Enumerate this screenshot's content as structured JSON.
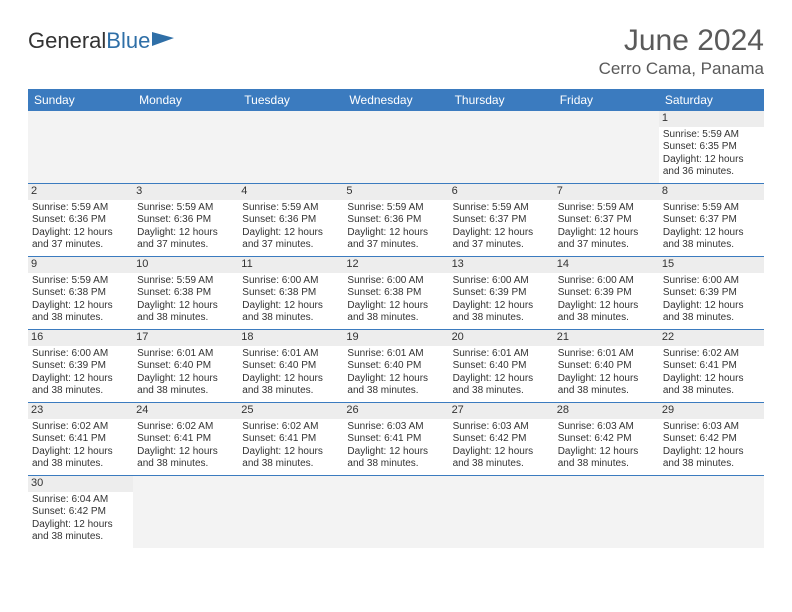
{
  "logo": {
    "text1": "General",
    "text2": "Blue"
  },
  "title": "June 2024",
  "location": "Cerro Cama, Panama",
  "colors": {
    "header_bg": "#3b7bbf",
    "header_fg": "#ffffff",
    "daynum_bg": "#ededed",
    "rule": "#3b7bbf"
  },
  "weekdays": [
    "Sunday",
    "Monday",
    "Tuesday",
    "Wednesday",
    "Thursday",
    "Friday",
    "Saturday"
  ],
  "weeks": [
    [
      null,
      null,
      null,
      null,
      null,
      null,
      {
        "n": "1",
        "sr": "5:59 AM",
        "ss": "6:35 PM",
        "dl": "12 hours and 36 minutes."
      }
    ],
    [
      {
        "n": "2",
        "sr": "5:59 AM",
        "ss": "6:36 PM",
        "dl": "12 hours and 37 minutes."
      },
      {
        "n": "3",
        "sr": "5:59 AM",
        "ss": "6:36 PM",
        "dl": "12 hours and 37 minutes."
      },
      {
        "n": "4",
        "sr": "5:59 AM",
        "ss": "6:36 PM",
        "dl": "12 hours and 37 minutes."
      },
      {
        "n": "5",
        "sr": "5:59 AM",
        "ss": "6:36 PM",
        "dl": "12 hours and 37 minutes."
      },
      {
        "n": "6",
        "sr": "5:59 AM",
        "ss": "6:37 PM",
        "dl": "12 hours and 37 minutes."
      },
      {
        "n": "7",
        "sr": "5:59 AM",
        "ss": "6:37 PM",
        "dl": "12 hours and 37 minutes."
      },
      {
        "n": "8",
        "sr": "5:59 AM",
        "ss": "6:37 PM",
        "dl": "12 hours and 38 minutes."
      }
    ],
    [
      {
        "n": "9",
        "sr": "5:59 AM",
        "ss": "6:38 PM",
        "dl": "12 hours and 38 minutes."
      },
      {
        "n": "10",
        "sr": "5:59 AM",
        "ss": "6:38 PM",
        "dl": "12 hours and 38 minutes."
      },
      {
        "n": "11",
        "sr": "6:00 AM",
        "ss": "6:38 PM",
        "dl": "12 hours and 38 minutes."
      },
      {
        "n": "12",
        "sr": "6:00 AM",
        "ss": "6:38 PM",
        "dl": "12 hours and 38 minutes."
      },
      {
        "n": "13",
        "sr": "6:00 AM",
        "ss": "6:39 PM",
        "dl": "12 hours and 38 minutes."
      },
      {
        "n": "14",
        "sr": "6:00 AM",
        "ss": "6:39 PM",
        "dl": "12 hours and 38 minutes."
      },
      {
        "n": "15",
        "sr": "6:00 AM",
        "ss": "6:39 PM",
        "dl": "12 hours and 38 minutes."
      }
    ],
    [
      {
        "n": "16",
        "sr": "6:00 AM",
        "ss": "6:39 PM",
        "dl": "12 hours and 38 minutes."
      },
      {
        "n": "17",
        "sr": "6:01 AM",
        "ss": "6:40 PM",
        "dl": "12 hours and 38 minutes."
      },
      {
        "n": "18",
        "sr": "6:01 AM",
        "ss": "6:40 PM",
        "dl": "12 hours and 38 minutes."
      },
      {
        "n": "19",
        "sr": "6:01 AM",
        "ss": "6:40 PM",
        "dl": "12 hours and 38 minutes."
      },
      {
        "n": "20",
        "sr": "6:01 AM",
        "ss": "6:40 PM",
        "dl": "12 hours and 38 minutes."
      },
      {
        "n": "21",
        "sr": "6:01 AM",
        "ss": "6:40 PM",
        "dl": "12 hours and 38 minutes."
      },
      {
        "n": "22",
        "sr": "6:02 AM",
        "ss": "6:41 PM",
        "dl": "12 hours and 38 minutes."
      }
    ],
    [
      {
        "n": "23",
        "sr": "6:02 AM",
        "ss": "6:41 PM",
        "dl": "12 hours and 38 minutes."
      },
      {
        "n": "24",
        "sr": "6:02 AM",
        "ss": "6:41 PM",
        "dl": "12 hours and 38 minutes."
      },
      {
        "n": "25",
        "sr": "6:02 AM",
        "ss": "6:41 PM",
        "dl": "12 hours and 38 minutes."
      },
      {
        "n": "26",
        "sr": "6:03 AM",
        "ss": "6:41 PM",
        "dl": "12 hours and 38 minutes."
      },
      {
        "n": "27",
        "sr": "6:03 AM",
        "ss": "6:42 PM",
        "dl": "12 hours and 38 minutes."
      },
      {
        "n": "28",
        "sr": "6:03 AM",
        "ss": "6:42 PM",
        "dl": "12 hours and 38 minutes."
      },
      {
        "n": "29",
        "sr": "6:03 AM",
        "ss": "6:42 PM",
        "dl": "12 hours and 38 minutes."
      }
    ],
    [
      {
        "n": "30",
        "sr": "6:04 AM",
        "ss": "6:42 PM",
        "dl": "12 hours and 38 minutes."
      },
      null,
      null,
      null,
      null,
      null,
      null
    ]
  ],
  "labels": {
    "sunrise": "Sunrise: ",
    "sunset": "Sunset: ",
    "daylight": "Daylight: "
  }
}
